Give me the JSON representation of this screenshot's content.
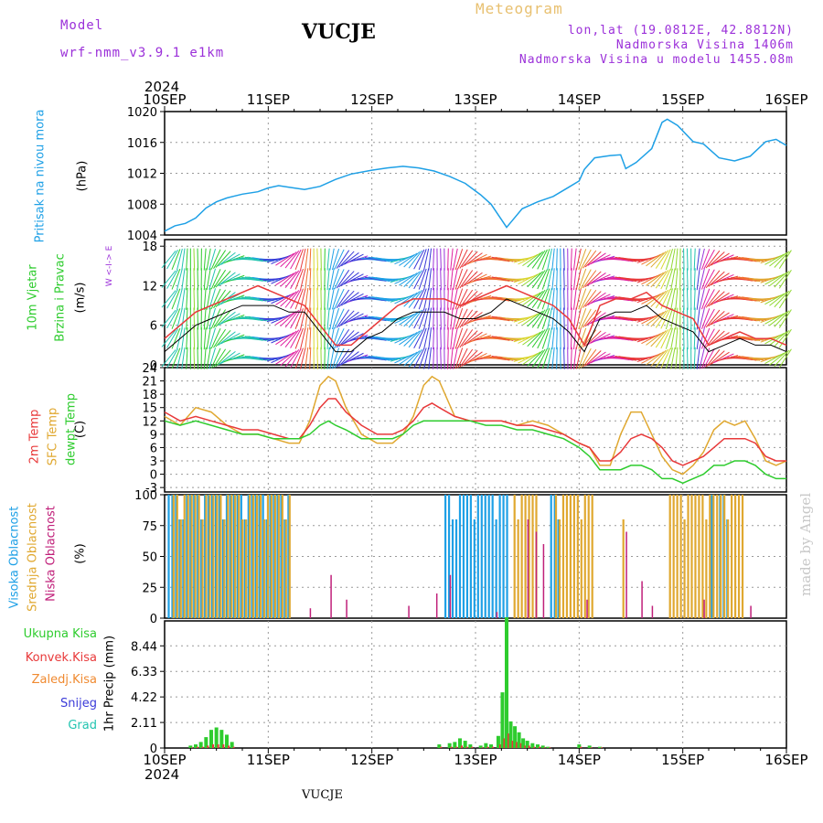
{
  "header": {
    "model_label": "Model",
    "model_name": "wrf-nmm_v3.9.1  e1km",
    "station": "VUCJE",
    "product": "Meteogram",
    "lonlat": "lon,lat (19.0812E, 42.8812N)",
    "elevation": "Nadmorska Visina 1406m",
    "model_elevation": "Nadmorska Visina u modelu 1455.08m"
  },
  "footer": {
    "station": "VUCJE",
    "credit": "made by Angel"
  },
  "time_axis": {
    "year": "2024",
    "labels": [
      "10SEP",
      "11SEP",
      "12SEP",
      "13SEP",
      "14SEP",
      "15SEP",
      "16SEP"
    ]
  },
  "colors": {
    "pressure": "#1ea0e6",
    "temp2m": "#e8393a",
    "sfctemp": "#e0a830",
    "dewpt": "#2ecc2e",
    "high_cloud": "#1ea0e6",
    "mid_cloud": "#e0a830",
    "low_cloud": "#c0207a",
    "precip_total": "#2ecc2e",
    "precip_conv": "#e8393a",
    "precip_frozen": "#f08a30",
    "snow": "#3a3ad8",
    "grad": "#22c4b0"
  },
  "panels": {
    "pressure": {
      "label": "Pritisak na nivou mora",
      "unit": "(hPa)"
    },
    "wind": {
      "label1": "10m Vjetar",
      "label2": "Brzina i Pravac",
      "unit": "(m/s)",
      "compass": "W  <-I->  E"
    },
    "temp": {
      "label1": "2m Temp",
      "label2": "SFC Temp",
      "label3": "dewpt Temp",
      "unit": "(C)"
    },
    "cloud": {
      "label1": "Visoka Oblacnost",
      "label2": "Srednja Oblacnost",
      "label3": "Niska Oblacnost",
      "unit": "(%)"
    },
    "precip": {
      "legend": [
        "Ukupna Kisa",
        "Konvek.Kisa",
        "Zaledj.Kisa",
        "Snijeg",
        "Grad"
      ],
      "unit": "1hr Precip (mm)"
    }
  },
  "chart_data": [
    {
      "type": "line",
      "title": "",
      "ylabel": "(hPa)",
      "ylim": [
        1004,
        1020
      ],
      "yticks": [
        1004,
        1008,
        1012,
        1016,
        1020
      ],
      "x_days": [
        0,
        0.1,
        0.2,
        0.3,
        0.4,
        0.5,
        0.6,
        0.75,
        0.9,
        1.0,
        1.1,
        1.2,
        1.35,
        1.5,
        1.65,
        1.8,
        2.0,
        2.15,
        2.3,
        2.45,
        2.6,
        2.75,
        2.9,
        3.05,
        3.15,
        3.25,
        3.3,
        3.35,
        3.45,
        3.6,
        3.75,
        3.9,
        4.0,
        4.05,
        4.15,
        4.3,
        4.4,
        4.45,
        4.55,
        4.7,
        4.8,
        4.85,
        4.95,
        5.1,
        5.2,
        5.35,
        5.5,
        5.65,
        5.8,
        5.9,
        6.0
      ],
      "series": [
        {
          "name": "Pritisak na nivou mora",
          "values": [
            1004.5,
            1005.2,
            1005.5,
            1006.2,
            1007.5,
            1008.3,
            1008.8,
            1009.3,
            1009.6,
            1010.1,
            1010.4,
            1010.2,
            1009.9,
            1010.3,
            1011.2,
            1011.9,
            1012.4,
            1012.7,
            1012.9,
            1012.7,
            1012.3,
            1011.6,
            1010.7,
            1009.2,
            1008.0,
            1006.0,
            1005.0,
            1005.8,
            1007.4,
            1008.3,
            1009.0,
            1010.2,
            1011.0,
            1012.5,
            1014.0,
            1014.3,
            1014.4,
            1012.6,
            1013.4,
            1015.2,
            1018.6,
            1019.0,
            1018.2,
            1016.1,
            1015.8,
            1014.0,
            1013.6,
            1014.2,
            1016.1,
            1016.4,
            1015.6
          ]
        }
      ]
    },
    {
      "type": "line",
      "title": "",
      "ylabel": "(m/s)",
      "ylim": [
        0,
        19
      ],
      "yticks": [
        0,
        6,
        12,
        18
      ],
      "x_days": [
        0,
        0.15,
        0.3,
        0.45,
        0.6,
        0.75,
        0.9,
        1.05,
        1.2,
        1.35,
        1.5,
        1.65,
        1.8,
        1.95,
        2.1,
        2.25,
        2.4,
        2.55,
        2.7,
        2.85,
        3.0,
        3.15,
        3.3,
        3.45,
        3.6,
        3.75,
        3.9,
        4.05,
        4.2,
        4.35,
        4.5,
        4.65,
        4.8,
        4.95,
        5.1,
        5.25,
        5.4,
        5.55,
        5.7,
        5.85,
        6.0
      ],
      "series": [
        {
          "name": "gust",
          "values": [
            4,
            6,
            8,
            9,
            10,
            11,
            12,
            11,
            10,
            9,
            6,
            3,
            3,
            5,
            7,
            9,
            10,
            10,
            10,
            9,
            10,
            11,
            12,
            11,
            10,
            9,
            7,
            3,
            9,
            10,
            10,
            11,
            9,
            8,
            7,
            3,
            4,
            5,
            4,
            4,
            3
          ]
        },
        {
          "name": "mean",
          "values": [
            2,
            4,
            6,
            7,
            8,
            9,
            9,
            9,
            8,
            8,
            5,
            2,
            2,
            4,
            5,
            7,
            8,
            8,
            8,
            7,
            7,
            8,
            10,
            9,
            8,
            7,
            5,
            2,
            7,
            8,
            8,
            9,
            7,
            6,
            5,
            2,
            3,
            4,
            3,
            3,
            2
          ]
        }
      ]
    },
    {
      "type": "line",
      "title": "",
      "ylabel": "(C)",
      "ylim": [
        -4,
        24
      ],
      "yticks": [
        -3,
        0,
        3,
        6,
        9,
        12,
        15,
        18,
        21,
        24
      ],
      "x_days": [
        0,
        0.15,
        0.3,
        0.45,
        0.6,
        0.75,
        0.9,
        1.05,
        1.2,
        1.3,
        1.4,
        1.5,
        1.58,
        1.65,
        1.75,
        1.9,
        2.05,
        2.2,
        2.3,
        2.4,
        2.5,
        2.58,
        2.65,
        2.8,
        2.95,
        3.1,
        3.25,
        3.4,
        3.55,
        3.7,
        3.85,
        4.0,
        4.1,
        4.2,
        4.3,
        4.4,
        4.5,
        4.6,
        4.7,
        4.8,
        4.9,
        5.0,
        5.1,
        5.2,
        5.3,
        5.4,
        5.5,
        5.6,
        5.7,
        5.8,
        5.9,
        6.0
      ],
      "series": [
        {
          "name": "2m Temp",
          "values": [
            14,
            12,
            13,
            12,
            11,
            10,
            10,
            9,
            8,
            8,
            11,
            15,
            17,
            17,
            14,
            11,
            9,
            9,
            10,
            12,
            15,
            16,
            15,
            13,
            12,
            12,
            12,
            11,
            11,
            10,
            9,
            7,
            6,
            3,
            3,
            5,
            8,
            9,
            8,
            6,
            3,
            2,
            3,
            4,
            6,
            8,
            8,
            8,
            7,
            4,
            3,
            3
          ]
        },
        {
          "name": "SFC Temp",
          "values": [
            13,
            11,
            15,
            14,
            11,
            9,
            9,
            8,
            7,
            7,
            12,
            20,
            22,
            21,
            15,
            9,
            7,
            7,
            9,
            13,
            20,
            22,
            21,
            13,
            12,
            12,
            12,
            11,
            12,
            11,
            9,
            7,
            6,
            2,
            2,
            9,
            14,
            14,
            9,
            4,
            1,
            0,
            2,
            5,
            10,
            12,
            11,
            12,
            8,
            3,
            2,
            3
          ]
        },
        {
          "name": "dewpt Temp",
          "values": [
            12,
            11,
            12,
            11,
            10,
            9,
            9,
            8,
            8,
            8,
            9,
            11,
            12,
            11,
            10,
            8,
            8,
            8,
            9,
            11,
            12,
            12,
            12,
            12,
            12,
            11,
            11,
            10,
            10,
            9,
            8,
            6,
            4,
            1,
            1,
            1,
            2,
            2,
            1,
            -1,
            -1,
            -2,
            -1,
            0,
            2,
            2,
            3,
            3,
            2,
            0,
            -1,
            -1
          ]
        }
      ]
    },
    {
      "type": "bar",
      "title": "",
      "ylabel": "(%)",
      "ylim": [
        0,
        100
      ],
      "yticks": [
        0,
        25,
        50,
        75,
        100
      ],
      "high_cloud_intervals_days": [
        [
          0.03,
          1.22
        ],
        [
          2.7,
          3.3
        ],
        [
          3.72,
          3.8
        ],
        [
          5.27,
          5.3
        ],
        [
          5.35,
          5.45
        ]
      ],
      "mid_cloud_intervals_days": [
        [
          0.06,
          1.2
        ],
        [
          3.35,
          3.6
        ],
        [
          3.75,
          4.12
        ],
        [
          4.4,
          4.45
        ],
        [
          4.85,
          5.6
        ]
      ],
      "low_cloud_spikes": [
        [
          1.4,
          8
        ],
        [
          1.6,
          35
        ],
        [
          1.75,
          15
        ],
        [
          2.35,
          10
        ],
        [
          2.62,
          20
        ],
        [
          2.75,
          35
        ],
        [
          3.2,
          5
        ],
        [
          3.5,
          80
        ],
        [
          3.58,
          70
        ],
        [
          3.65,
          60
        ],
        [
          4.07,
          15
        ],
        [
          4.45,
          70
        ],
        [
          4.6,
          30
        ],
        [
          4.7,
          10
        ],
        [
          5.2,
          15
        ],
        [
          5.65,
          10
        ]
      ]
    },
    {
      "type": "bar",
      "title": "",
      "ylabel": "1hr Precip (mm)",
      "ylim": [
        0,
        10.5
      ],
      "yticks": [
        0,
        2.11,
        4.22,
        6.33,
        8.44
      ],
      "x_days": [
        0.25,
        0.3,
        0.35,
        0.4,
        0.45,
        0.5,
        0.55,
        0.6,
        0.65,
        2.65,
        2.75,
        2.8,
        2.85,
        2.9,
        2.95,
        3.05,
        3.1,
        3.15,
        3.22,
        3.26,
        3.3,
        3.34,
        3.38,
        3.42,
        3.46,
        3.5,
        3.55,
        3.6,
        3.65,
        3.7,
        4.0,
        4.1,
        4.2
      ],
      "series": [
        {
          "name": "Ukupna Kisa",
          "values": [
            0.2,
            0.3,
            0.5,
            0.9,
            1.5,
            1.7,
            1.5,
            1.1,
            0.5,
            0.3,
            0.4,
            0.5,
            0.8,
            0.6,
            0.3,
            0.2,
            0.4,
            0.3,
            1.0,
            4.6,
            10.8,
            2.2,
            1.8,
            1.3,
            0.8,
            0.6,
            0.4,
            0.3,
            0.2,
            0.1,
            0.3,
            0.2,
            0.1
          ]
        },
        {
          "name": "Konvek.Kisa",
          "values": [
            0.05,
            0.1,
            0.1,
            0.2,
            0.3,
            0.3,
            0.3,
            0.2,
            0.1,
            0.1,
            0.1,
            0.1,
            0.2,
            0.1,
            0.1,
            0.05,
            0.1,
            0.1,
            0.3,
            0.8,
            1.2,
            0.6,
            0.5,
            0.4,
            0.2,
            0.2,
            0.1,
            0.1,
            0.05,
            0.05,
            0.1,
            0.05,
            0.05
          ]
        }
      ]
    }
  ]
}
